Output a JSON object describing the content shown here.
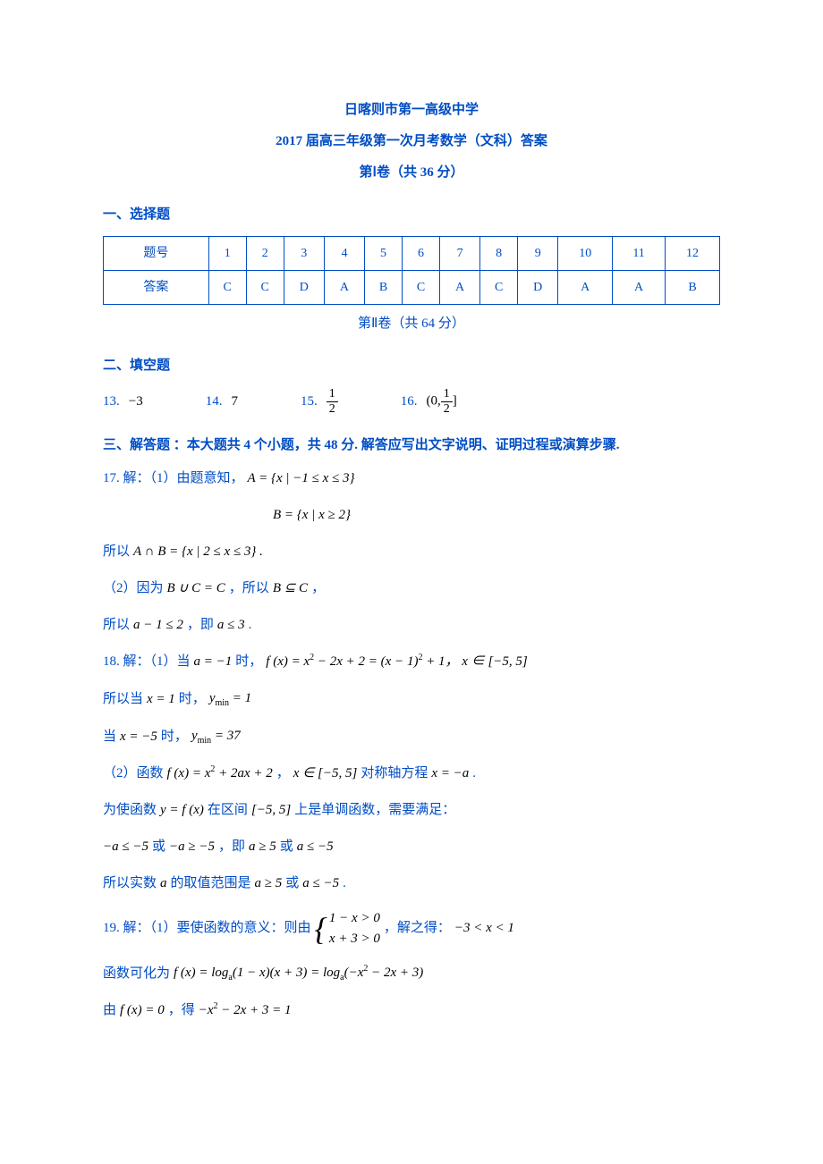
{
  "header": {
    "school": "日喀则市第一高级中学",
    "exam": "2017 届高三年级第一次月考数学（文科）答案",
    "part1": "第Ⅰ卷（共 36 分）"
  },
  "section1": {
    "title": "一、选择题",
    "row_label_q": "题号",
    "row_label_a": "答案",
    "numbers": [
      "1",
      "2",
      "3",
      "4",
      "5",
      "6",
      "7",
      "8",
      "9",
      "10",
      "11",
      "12"
    ],
    "answers": [
      "C",
      "C",
      "D",
      "A",
      "B",
      "C",
      "A",
      "C",
      "D",
      "A",
      "A",
      "B"
    ]
  },
  "part2": "第Ⅱ卷（共 64 分）",
  "section2": {
    "title": "二、填空题",
    "items": [
      {
        "num": "13.",
        "val": "−3"
      },
      {
        "num": "14.",
        "val": "7"
      },
      {
        "num": "15.",
        "frac_num": "1",
        "frac_den": "2"
      },
      {
        "num": "16.",
        "prefix": "(0,",
        "frac_num": "1",
        "frac_den": "2",
        "suffix": "]"
      }
    ]
  },
  "section3": {
    "title": "三、解答题 ：本大题共 4 个小题，共 48 分. 解答应写出文字说明、证明过程或演算步骤."
  },
  "q17": {
    "l1_blue": "17. 解：（1）由题意知，",
    "l1_black": "A = {x | −1 ≤ x ≤ 3}",
    "l2_black": "B = {x | x ≥ 2}",
    "l3_blue": "所以",
    "l3_black": " A ∩ B = {x | 2 ≤ x ≤ 3} .",
    "l4_blue_a": "（2）因为",
    "l4_black_a": " B ∪ C = C ",
    "l4_blue_b": "，所以",
    "l4_black_b": " B ⊆ C ",
    "l4_blue_c": "，",
    "l5_blue_a": "所以",
    "l5_black_a": " a − 1 ≤ 2 ",
    "l5_blue_b": "，即",
    "l5_black_b": " a ≤ 3 ",
    "l5_blue_c": "."
  },
  "q18": {
    "l1_blue_a": "18. 解：（1）当",
    "l1_black_a": " a = −1",
    "l1_blue_b": "时，",
    "l1_black_b": " f (x) = x",
    "l1_sup1": "2",
    "l1_black_c": " − 2x + 2 = (x − 1)",
    "l1_sup2": "2",
    "l1_black_d": " + 1，  x ∈ [−5, 5]",
    "l2_blue_a": "所以当",
    "l2_black_a": " x = 1 ",
    "l2_blue_b": "时，",
    "l2_black_b": " y",
    "l2_sub": "min",
    "l2_black_c": " = 1",
    "l3_blue_a": "当",
    "l3_black_a": " x = −5 ",
    "l3_blue_b": "时，",
    "l3_black_b": " y",
    "l3_sub": "min",
    "l3_black_c": " = 37",
    "l4_blue_a": "（2）函数",
    "l4_black_a": " f (x) = x",
    "l4_sup1": "2",
    "l4_black_b": " + 2ax + 2 ",
    "l4_blue_b": "，",
    "l4_black_c": " x ∈ [−5, 5] ",
    "l4_blue_c": "对称轴方程",
    "l4_black_d": " x = −a ",
    "l4_blue_d": ".",
    "l5_blue_a": "为使函数",
    "l5_black_a": " y = f (x) ",
    "l5_blue_b": "在区间",
    "l5_black_b": " [−5, 5] ",
    "l5_blue_c": "上是单调函数，需要满足：",
    "l6_black_a": "−a ≤ −5 ",
    "l6_blue_a": "或",
    "l6_black_b": " −a ≥ −5 ",
    "l6_blue_b": "，即",
    "l6_black_c": " a ≥ 5 ",
    "l6_blue_c": "或",
    "l6_black_d": " a ≤ −5",
    "l7_blue_a": "所以实数",
    "l7_black_a": " a ",
    "l7_blue_b": "的取值范围是",
    "l7_black_b": " a ≥ 5 ",
    "l7_blue_c": "或",
    "l7_black_c": " a ≤ −5 ",
    "l7_blue_d": "."
  },
  "q19": {
    "l1_blue": "19. 解：（1）要使函数的意义：则由",
    "l1_brace_top": "1 − x > 0",
    "l1_brace_bot": "x + 3 > 0",
    "l1_blue_b": "，解之得：",
    "l1_black_b": " −3 < x < 1",
    "l2_blue": "函数可化为",
    "l2_black_a": " f (x) = log",
    "l2_sub_a": "a",
    "l2_black_b": "(1 − x)(x + 3) = log",
    "l2_sub_b": "a",
    "l2_black_c": "(−x",
    "l2_sup": "2",
    "l2_black_d": " − 2x + 3)",
    "l3_blue_a": "由",
    "l3_black_a": " f (x) = 0 ",
    "l3_blue_b": "，得",
    "l3_black_b": " −x",
    "l3_sup": "2",
    "l3_black_c": " − 2x + 3 = 1"
  }
}
